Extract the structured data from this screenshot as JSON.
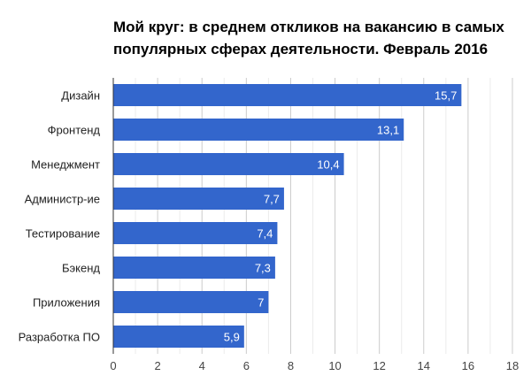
{
  "chart_data": {
    "type": "bar",
    "orientation": "horizontal",
    "title_lines": [
      "Мой круг: в среднем откликов на вакансию в самых",
      "популярных сферах деятельности. Февраль 2016"
    ],
    "categories": [
      "Дизайн",
      "Фронтенд",
      "Менеджмент",
      "Администр-ие",
      "Тестирование",
      "Бэкенд",
      "Приложения",
      "Разработка ПО"
    ],
    "values": [
      15.7,
      13.1,
      10.4,
      7.7,
      7.4,
      7.3,
      7,
      5.9
    ],
    "data_labels": [
      "15,7",
      "13,1",
      "10,4",
      "7,7",
      "7,4",
      "7,3",
      "7",
      "5,9"
    ],
    "xlim": [
      0,
      18
    ],
    "x_ticks": [
      0,
      2,
      4,
      6,
      8,
      10,
      12,
      14,
      16,
      18
    ],
    "grid": true,
    "legend": "none",
    "bar_color": "#3366cc"
  }
}
